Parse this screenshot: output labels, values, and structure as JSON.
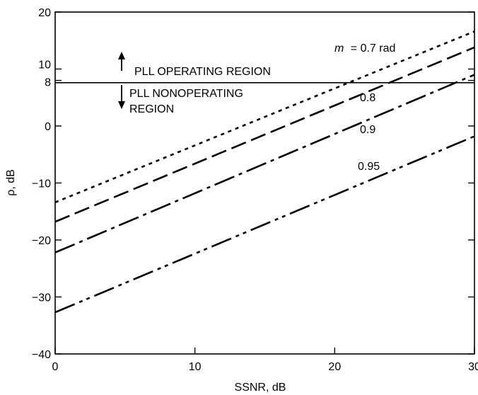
{
  "chart_data": {
    "type": "line",
    "xlabel": "SSNR, dB",
    "ylabel": "ρ, dB",
    "xlim": [
      0,
      30
    ],
    "ylim": [
      -40,
      20
    ],
    "x_ticks": [
      {
        "value": 0,
        "label": "0"
      },
      {
        "value": 10,
        "label": "10"
      },
      {
        "value": 20,
        "label": "20"
      },
      {
        "value": 30,
        "label": "30"
      }
    ],
    "y_ticks": [
      {
        "value": -40,
        "label": "−40"
      },
      {
        "value": -30,
        "label": "−30"
      },
      {
        "value": -20,
        "label": "−20"
      },
      {
        "value": -10,
        "label": "−10"
      },
      {
        "value": 0,
        "label": "0"
      },
      {
        "value": 8,
        "label": "8"
      },
      {
        "value": 10,
        "label": "10"
      },
      {
        "value": 20,
        "label": "20"
      }
    ],
    "grid": false,
    "threshold": {
      "value": 7.6
    },
    "series": [
      {
        "name": "0.7",
        "dash": "dotted",
        "x": [
          0,
          30
        ],
        "y": [
          -13.4,
          16.6
        ]
      },
      {
        "name": "0.8",
        "dash": "dashed",
        "x": [
          0,
          30
        ],
        "y": [
          -16.8,
          13.8
        ]
      },
      {
        "name": "0.9",
        "dash": "dash-dot",
        "x": [
          0,
          30
        ],
        "y": [
          -22.2,
          9.0
        ]
      },
      {
        "name": "0.95",
        "dash": "dash-dot-dot",
        "x": [
          0,
          30
        ],
        "y": [
          -32.7,
          -1.8
        ]
      }
    ],
    "annotations": {
      "m_symbol": "m",
      "m_equals": "= 0.7 rad",
      "label_08": "0.8",
      "label_09": "0.9",
      "label_095": "0.95",
      "operating": "PLL OPERATING REGION",
      "nonoperating_1": "PLL NONOPERATING",
      "nonoperating_2": "REGION"
    }
  }
}
